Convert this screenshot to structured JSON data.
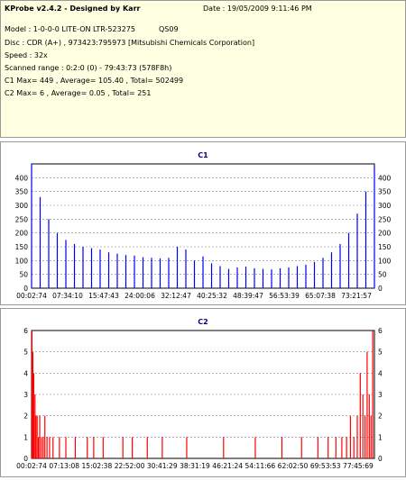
{
  "header": {
    "title": "KProbe v2.4.2 - Designed by Karr",
    "date": "Date : 19/05/2009 9:11:46 PM",
    "model": "Model : 1-0-0-0 LITE-ON LTR-523275",
    "firmware": "QS09",
    "disc": "Disc : CDR (A+) , 973423:795973 [Mitsubishi Chemicals Corporation]",
    "speed": "Speed : 32x",
    "scanned_range": "Scanned range : 0:2:0 (0) - 79:43:73 (578F8h)",
    "c1_stats": "C1 Max= 449 , Average= 105.40 , Total= 502499",
    "c2_stats": "C2 Max= 6 , Average= 0.05 , Total= 251"
  },
  "chart_data": [
    {
      "type": "bar",
      "title": "C1",
      "color": "#0000ff",
      "ylim": [
        0,
        450
      ],
      "y_ticks": [
        0,
        50,
        100,
        150,
        200,
        250,
        300,
        350,
        400
      ],
      "x_tick_labels": [
        "00:02:74",
        "07:34:10",
        "15:47:43",
        "24:00:06",
        "32:12:47",
        "40:25:32",
        "48:39:47",
        "56:53:39",
        "65:07:38",
        "73:21:57"
      ],
      "x": [
        0,
        2,
        4,
        6,
        8,
        10,
        12,
        14,
        16,
        18,
        20,
        22,
        24,
        26,
        28,
        30,
        32,
        34,
        36,
        38,
        40,
        42,
        44,
        46,
        48,
        50,
        52,
        54,
        56,
        58,
        60,
        62,
        64,
        66,
        68,
        70,
        72,
        74,
        76,
        78,
        80
      ],
      "values": [
        449,
        330,
        250,
        200,
        175,
        160,
        150,
        145,
        140,
        130,
        125,
        120,
        118,
        112,
        110,
        108,
        110,
        150,
        140,
        100,
        115,
        90,
        80,
        70,
        75,
        78,
        72,
        70,
        68,
        72,
        75,
        80,
        85,
        95,
        110,
        130,
        160,
        200,
        270,
        350,
        440
      ]
    },
    {
      "type": "bar",
      "title": "C2",
      "color": "#ff0000",
      "ylim": [
        0,
        6
      ],
      "y_ticks": [
        0,
        1,
        2,
        3,
        4,
        5,
        6
      ],
      "x_tick_labels": [
        "00:02:74",
        "07:13:08",
        "15:02:38",
        "22:52:00",
        "30:41:29",
        "38:31:19",
        "46:21:24",
        "54:11:66",
        "62:02:50",
        "69:53:53",
        "77:45:69"
      ],
      "x": [
        0.1,
        0.3,
        0.5,
        0.8,
        1.0,
        1.3,
        1.6,
        1.9,
        2.3,
        2.7,
        3.1,
        3.6,
        4.2,
        5.0,
        6.5,
        8.0,
        10.2,
        13.0,
        14.5,
        16.7,
        21.3,
        23.5,
        27.0,
        30.5,
        36.2,
        44.8,
        52.2,
        58.4,
        63.0,
        66.8,
        69.2,
        71.0,
        72.4,
        73.5,
        74.4,
        75.2,
        76.0,
        76.7,
        77.3,
        77.8,
        78.3,
        78.8,
        79.2,
        79.6
      ],
      "values": [
        6,
        5,
        4,
        3,
        2,
        2,
        1,
        2,
        1,
        1,
        2,
        1,
        1,
        1,
        1,
        1,
        1,
        1,
        1,
        1,
        1,
        1,
        1,
        1,
        1,
        1,
        1,
        1,
        1,
        1,
        1,
        1,
        1,
        1,
        2,
        1,
        2,
        4,
        3,
        2,
        5,
        3,
        2,
        6
      ]
    }
  ]
}
